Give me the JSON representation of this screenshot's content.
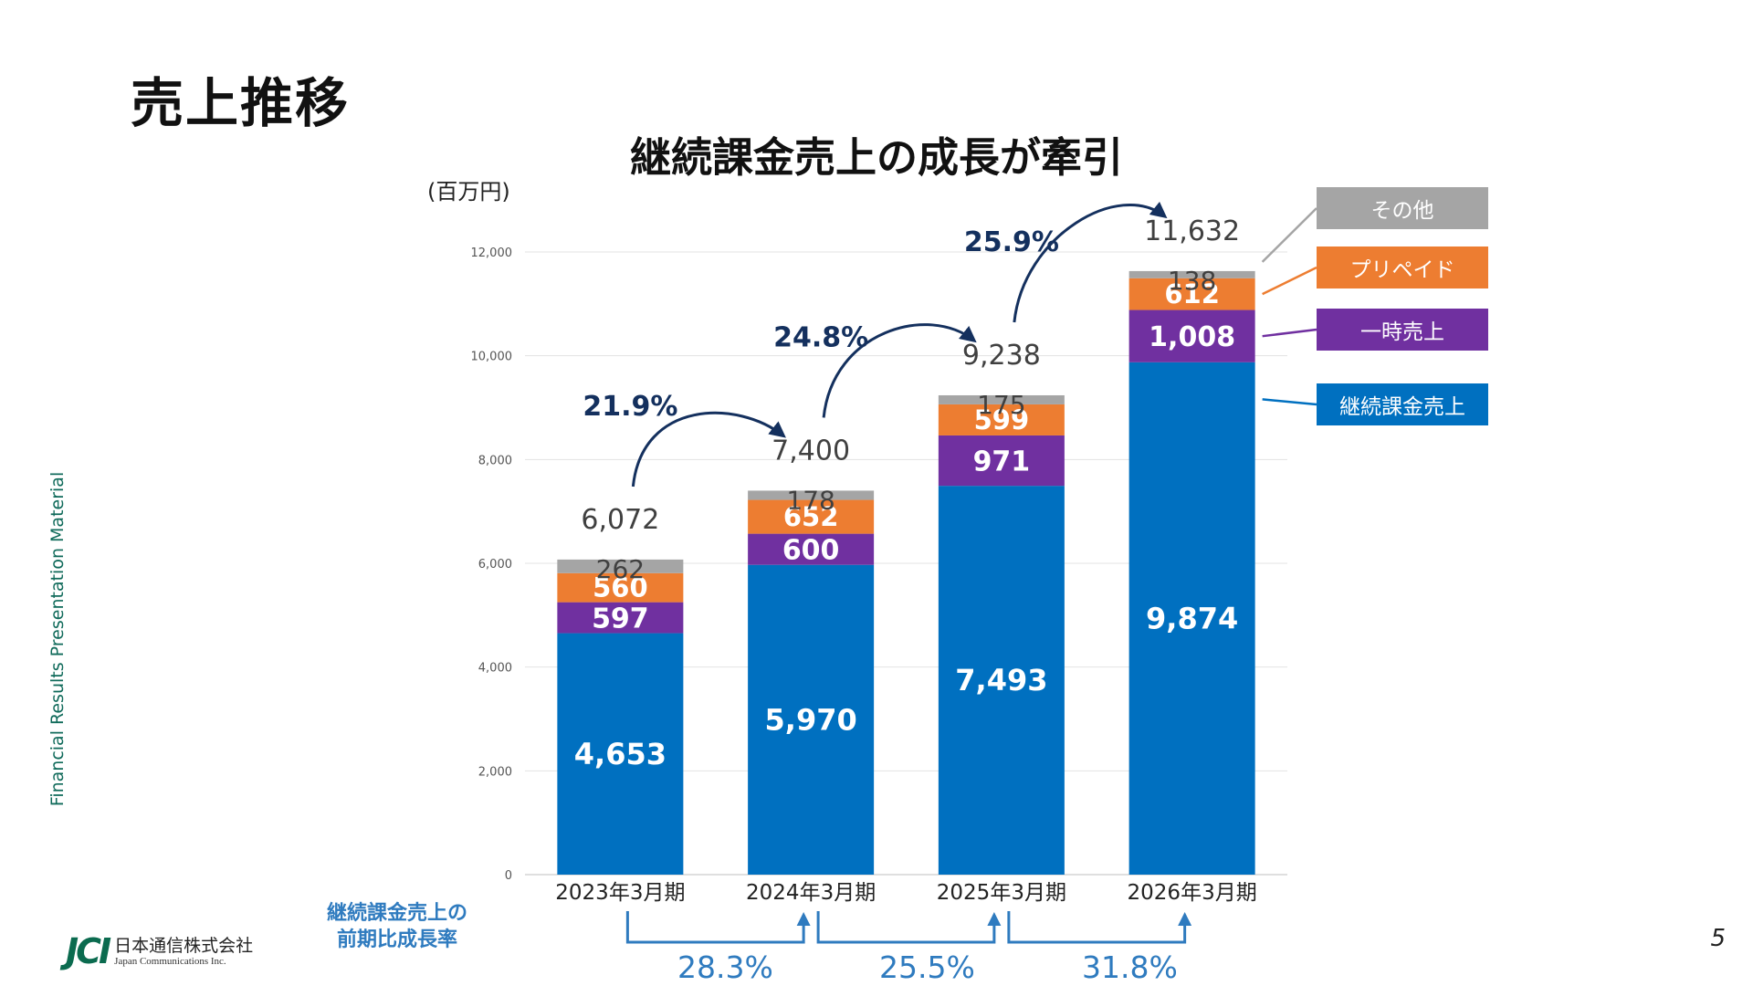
{
  "page": {
    "title": "売上推移",
    "side_text": "Financial Results Presentation Material",
    "page_number": "5",
    "company_logo": {
      "mark": "JCI",
      "name_ja": "日本通信株式会社",
      "name_en": "Japan Communications Inc."
    }
  },
  "chart_data": {
    "type": "bar",
    "stacked": true,
    "title": "継続課金売上の成長が牽引",
    "unit": "(百万円)",
    "xlabel": "",
    "ylabel": "",
    "ylim": [
      0,
      12000
    ],
    "yticks": [
      0,
      2000,
      4000,
      6000,
      8000,
      10000,
      12000
    ],
    "ytick_labels": [
      "0",
      "2,000",
      "4,000",
      "6,000",
      "8,000",
      "10,000",
      "12,000"
    ],
    "grid": true,
    "legend_position": "right",
    "categories": [
      "2023年3月期",
      "2024年3月期",
      "2025年3月期",
      "2026年3月期"
    ],
    "series": [
      {
        "name": "継続課金売上",
        "color": "#0070c0",
        "values": [
          4653,
          5970,
          7493,
          9874
        ],
        "labels": [
          "4,653",
          "5,970",
          "7,493",
          "9,874"
        ]
      },
      {
        "name": "一時売上",
        "color": "#7030a0",
        "values": [
          597,
          600,
          971,
          1008
        ],
        "labels": [
          "597",
          "600",
          "971",
          "1,008"
        ]
      },
      {
        "name": "プリペイド",
        "color": "#ed7d31",
        "values": [
          560,
          652,
          599,
          612
        ],
        "labels": [
          "560",
          "652",
          "599",
          "612"
        ]
      },
      {
        "name": "その他",
        "color": "#a5a5a5",
        "values": [
          262,
          178,
          175,
          138
        ],
        "labels": [
          "262",
          "178",
          "175",
          "138"
        ]
      }
    ],
    "totals": [
      6072,
      7400,
      9238,
      11632
    ],
    "total_labels": [
      "6,072",
      "7,400",
      "9,238",
      "11,632"
    ],
    "total_growth_rates": [
      "21.9%",
      "24.8%",
      "25.9%"
    ],
    "recurring_growth": {
      "title_line1": "継続課金売上の",
      "title_line2": "前期比成長率",
      "rates": [
        "28.3%",
        "25.5%",
        "31.8%"
      ]
    }
  }
}
